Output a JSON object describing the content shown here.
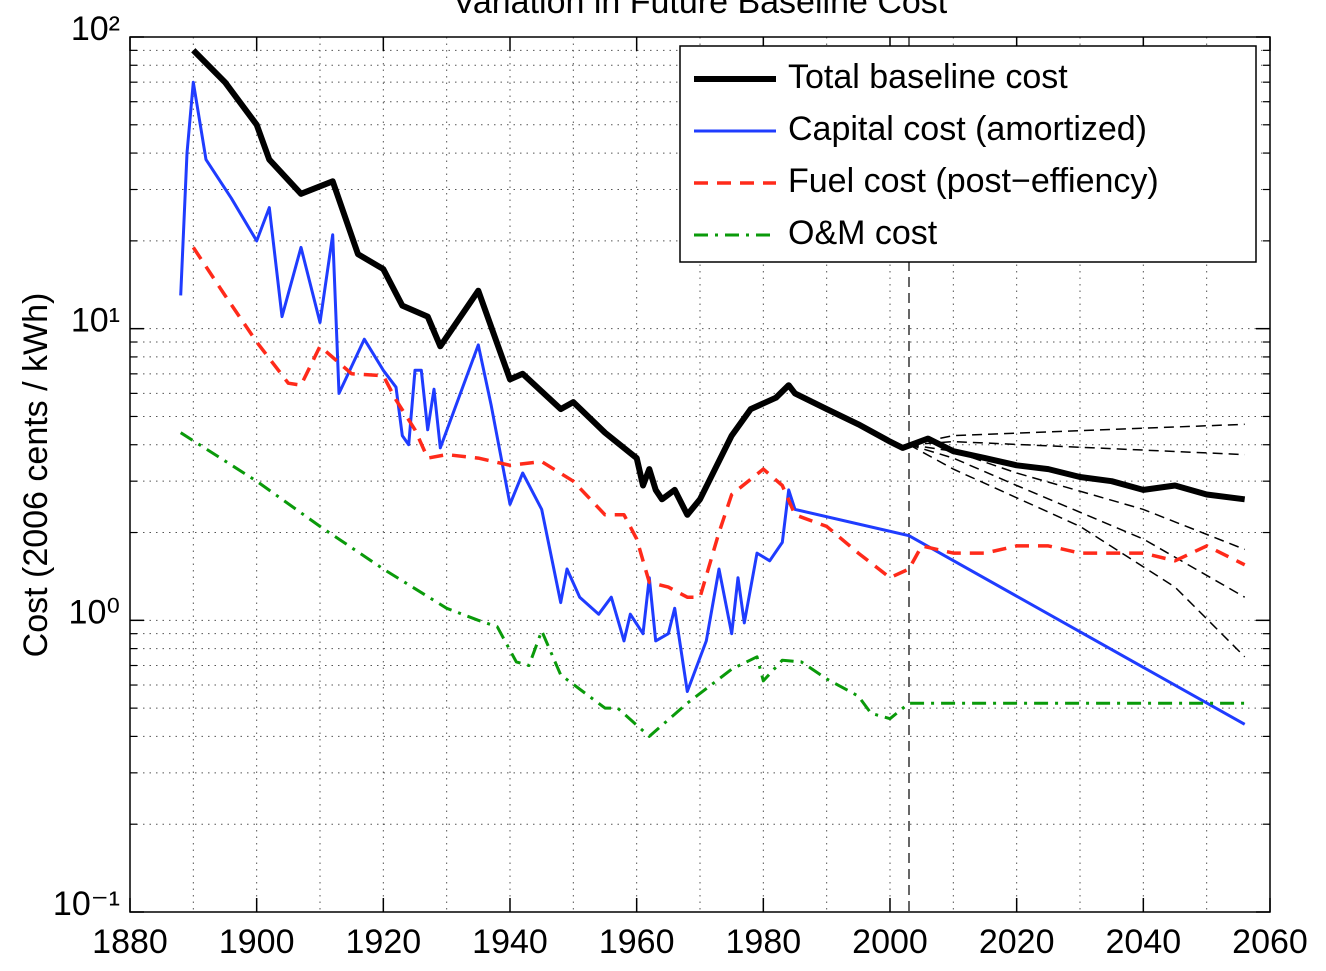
{
  "chart_data": {
    "type": "line",
    "title": "Variation in Future Baseline Cost",
    "y_label": "Cost (2006 cents / kWh)",
    "log_y": true,
    "grid": true,
    "minor_grid": true,
    "legend_position": "upper right",
    "xlim": [
      1880,
      2060
    ],
    "xticks": [
      1880,
      1900,
      1920,
      1940,
      1960,
      1980,
      2000,
      2020,
      2040,
      2060
    ],
    "ylim": [
      0.1,
      100
    ],
    "yticks": [
      {
        "value": 0.1,
        "label": "10⁻¹"
      },
      {
        "value": 1,
        "label": "10⁰"
      },
      {
        "value": 10,
        "label": "10¹"
      },
      {
        "value": 100,
        "label": "10²"
      }
    ],
    "vline": 2003,
    "series": [
      {
        "name": "Total baseline cost",
        "color": "#000000",
        "style": "solid",
        "width": 6,
        "x": [
          1890,
          1895,
          1900,
          1902,
          1907,
          1912,
          1916,
          1920,
          1923,
          1927,
          1929,
          1935,
          1940,
          1942,
          1948,
          1950,
          1955,
          1960,
          1961,
          1962,
          1963,
          1964,
          1966,
          1968,
          1970,
          1975,
          1978,
          1982,
          1984,
          1985,
          1990,
          1995,
          2000,
          2002,
          2006,
          2010,
          2015,
          2020,
          2025,
          2030,
          2035,
          2040,
          2045,
          2050,
          2056
        ],
        "values": [
          90,
          70,
          50,
          38,
          29,
          32,
          18,
          16,
          12,
          11,
          8.7,
          13.5,
          6.7,
          7,
          5.3,
          5.6,
          4.4,
          3.6,
          2.9,
          3.3,
          2.8,
          2.6,
          2.8,
          2.3,
          2.6,
          4.3,
          5.3,
          5.8,
          6.4,
          6,
          5.3,
          4.7,
          4.1,
          3.9,
          4.2,
          3.8,
          3.6,
          3.4,
          3.3,
          3.1,
          3.0,
          2.8,
          2.9,
          2.7,
          2.6
        ]
      },
      {
        "name": "Capital cost (amortized)",
        "color": "#1f3cff",
        "style": "solid",
        "width": 3,
        "x": [
          1888,
          1889,
          1890,
          1892,
          1896,
          1900,
          1902,
          1904,
          1907,
          1910,
          1912,
          1913,
          1917,
          1920,
          1922,
          1923,
          1924,
          1925,
          1926,
          1927,
          1928,
          1929,
          1935,
          1937,
          1940,
          1942,
          1945,
          1948,
          1949,
          1951,
          1954,
          1956,
          1958,
          1959,
          1961,
          1962,
          1963,
          1965,
          1966,
          1968,
          1971,
          1973,
          1975,
          1976,
          1977,
          1979,
          1981,
          1983,
          1984,
          1985,
          2003,
          2056
        ],
        "values": [
          13,
          40,
          70,
          38,
          28,
          20,
          26,
          11,
          19,
          10.5,
          21,
          6,
          9.2,
          7.2,
          6.3,
          4.3,
          4,
          7.2,
          7.2,
          4.5,
          6.2,
          3.9,
          8.8,
          5.5,
          2.5,
          3.2,
          2.4,
          1.15,
          1.5,
          1.2,
          1.05,
          1.2,
          0.85,
          1.05,
          0.9,
          1.4,
          0.85,
          0.9,
          1.1,
          0.57,
          0.85,
          1.5,
          0.9,
          1.4,
          0.98,
          1.7,
          1.6,
          1.85,
          2.8,
          2.4,
          1.95,
          0.44
        ]
      },
      {
        "name": "Fuel cost (post−effiency)",
        "color": "#ff2a1a",
        "style": "dashed",
        "width": 3.5,
        "x": [
          1890,
          1895,
          1900,
          1905,
          1907,
          1910,
          1915,
          1920,
          1922,
          1925,
          1927,
          1930,
          1935,
          1940,
          1945,
          1950,
          1955,
          1958,
          1960,
          1962,
          1965,
          1968,
          1970,
          1973,
          1975,
          1980,
          1983,
          1985,
          1990,
          1995,
          2000,
          2003,
          2005,
          2010,
          2015,
          2020,
          2025,
          2030,
          2035,
          2040,
          2045,
          2050,
          2056
        ],
        "values": [
          19,
          13,
          9,
          6.5,
          6.4,
          8.7,
          7,
          6.9,
          5.7,
          4.5,
          3.6,
          3.7,
          3.6,
          3.4,
          3.5,
          3.0,
          2.3,
          2.3,
          1.9,
          1.35,
          1.3,
          1.2,
          1.2,
          2.0,
          2.7,
          3.3,
          2.9,
          2.3,
          2.1,
          1.7,
          1.4,
          1.5,
          1.8,
          1.7,
          1.7,
          1.8,
          1.8,
          1.7,
          1.7,
          1.7,
          1.6,
          1.8,
          1.55
        ]
      },
      {
        "name": "O&M cost",
        "color": "#0a9a0a",
        "style": "dashdot",
        "width": 3,
        "x": [
          1888,
          1900,
          1910,
          1920,
          1930,
          1935,
          1938,
          1941,
          1943,
          1945,
          1948,
          1955,
          1957,
          1962,
          1968,
          1975,
          1979,
          1980,
          1983,
          1986,
          1990,
          1995,
          1997,
          2000,
          2003,
          2056
        ],
        "values": [
          4.4,
          3.0,
          2.1,
          1.5,
          1.1,
          1.0,
          0.95,
          0.72,
          0.7,
          0.92,
          0.65,
          0.5,
          0.5,
          0.4,
          0.52,
          0.68,
          0.75,
          0.62,
          0.73,
          0.72,
          0.63,
          0.55,
          0.48,
          0.46,
          0.52,
          0.52
        ]
      }
    ],
    "scenarios": [
      {
        "color": "#000000",
        "x": [
          2003,
          2010,
          2056
        ],
        "values": [
          4.0,
          4.3,
          4.7
        ]
      },
      {
        "color": "#000000",
        "x": [
          2003,
          2010,
          2056
        ],
        "values": [
          4.0,
          4.1,
          3.7
        ]
      },
      {
        "color": "#000000",
        "x": [
          2003,
          2010,
          2020,
          2040,
          2056
        ],
        "values": [
          4.0,
          3.8,
          3.2,
          2.4,
          1.75
        ]
      },
      {
        "color": "#000000",
        "x": [
          2003,
          2010,
          2020,
          2040,
          2056
        ],
        "values": [
          4.0,
          3.6,
          2.9,
          1.9,
          1.2
        ]
      },
      {
        "color": "#000000",
        "x": [
          2003,
          2010,
          2030,
          2045,
          2056
        ],
        "values": [
          4.0,
          3.3,
          2.1,
          1.3,
          0.75
        ]
      }
    ]
  }
}
